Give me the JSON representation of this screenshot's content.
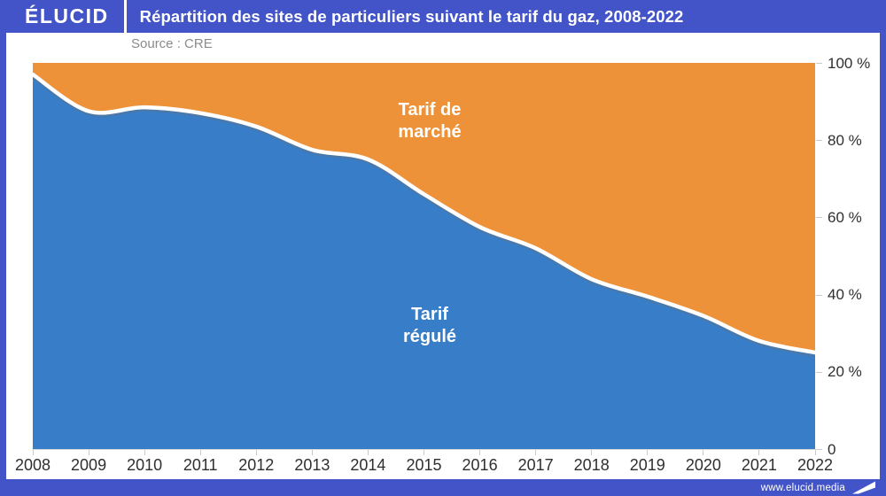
{
  "header": {
    "logo": "ÉLUCID",
    "title": "Répartition des sites de particuliers suivant le tarif du gaz, 2008-2022"
  },
  "source": "Source : CRE",
  "footer": {
    "url": "www.elucid.media"
  },
  "colors": {
    "brand_blue": "#4254c8",
    "area_regulated": "#377dc8",
    "area_market": "#ed9239",
    "boundary_line": "#ffffff",
    "axis_text": "#2f2f2f",
    "tick": "#c9c9c9",
    "source_text": "#8b8b8b"
  },
  "chart_data": {
    "type": "area",
    "stacked": true,
    "title": "Répartition des sites de particuliers suivant le tarif du gaz, 2008-2022",
    "x": [
      2008,
      2009,
      2010,
      2011,
      2012,
      2013,
      2014,
      2015,
      2016,
      2017,
      2018,
      2019,
      2020,
      2021,
      2022
    ],
    "x_labels": [
      "2008",
      "2009",
      "2010",
      "2011",
      "2012",
      "2013",
      "2014",
      "2015",
      "2016",
      "2017",
      "2018",
      "2019",
      "2020",
      "2021",
      "2022"
    ],
    "series": [
      {
        "name": "Tarif régulé",
        "color": "#377dc8",
        "values": [
          97,
          87.5,
          88.5,
          87,
          83.5,
          77.5,
          75,
          66,
          57.5,
          52,
          44,
          39.5,
          34.5,
          28,
          25
        ]
      },
      {
        "name": "Tarif de marché",
        "color": "#ed9239",
        "values": [
          3,
          12.5,
          11.5,
          13,
          16.5,
          22.5,
          25,
          34,
          42.5,
          48,
          56,
          60.5,
          65.5,
          72,
          75
        ]
      }
    ],
    "ylim": [
      0,
      100
    ],
    "y_tick_values": [
      100,
      80,
      60,
      40,
      20,
      0
    ],
    "y_tick_labels": [
      "100 %",
      "80 %",
      "60 %",
      "40 %",
      "20 %",
      "0"
    ],
    "legend_position": "labels-inside-areas",
    "grid": false,
    "area_labels": {
      "market": {
        "line1": "Tarif de",
        "line2": "marché"
      },
      "regulated": {
        "line1": "Tarif",
        "line2": "régulé"
      }
    }
  }
}
